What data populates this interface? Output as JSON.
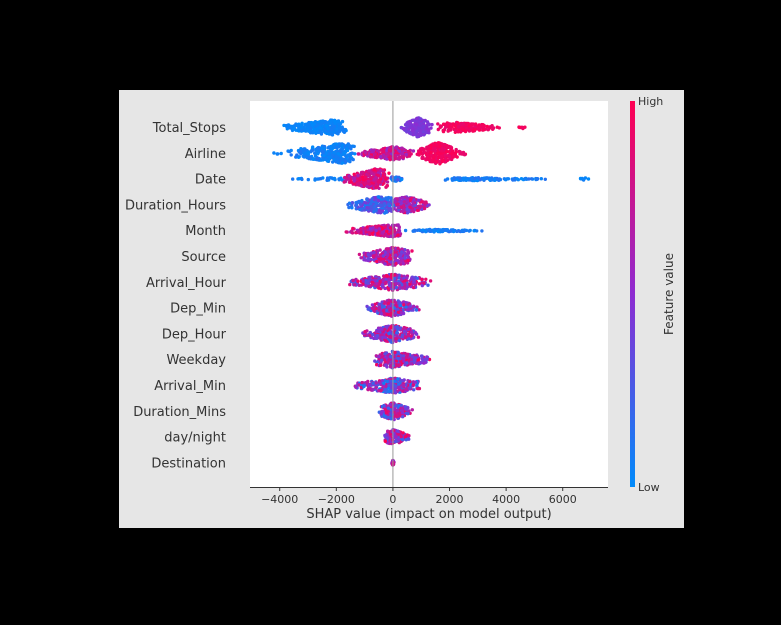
{
  "chart_data": {
    "type": "scatter",
    "subtype": "shap-beeswarm-summary",
    "xlabel": "SHAP value (impact on model output)",
    "ylabel": "",
    "xlim": [
      -5050,
      7600
    ],
    "xticks": [
      -4000,
      -2000,
      0,
      2000,
      4000,
      6000
    ],
    "grid": false,
    "zero_line": true,
    "features": [
      {
        "name": "Total_Stops",
        "groups": [
          {
            "min": -3900,
            "max": -1600,
            "peak": -2200,
            "width": 0.3,
            "count": 300,
            "low": 0.0,
            "high": 0.08
          },
          {
            "min": 250,
            "max": 1400,
            "peak": 900,
            "width": 0.38,
            "count": 180,
            "low": 0.38,
            "high": 0.5
          },
          {
            "min": 1500,
            "max": 3900,
            "peak": 2200,
            "width": 0.2,
            "count": 150,
            "low": 0.88,
            "high": 1.0
          },
          {
            "min": 4400,
            "max": 4700,
            "peak": 4500,
            "width": 0.06,
            "count": 8,
            "low": 0.9,
            "high": 1.0
          }
        ]
      },
      {
        "name": "Airline",
        "groups": [
          {
            "min": -4450,
            "max": -3800,
            "peak": -4100,
            "width": 0.03,
            "count": 4,
            "low": 0.0,
            "high": 0.1
          },
          {
            "min": -3800,
            "max": -1300,
            "peak": -1750,
            "width": 0.4,
            "count": 300,
            "low": 0.0,
            "high": 0.12
          },
          {
            "min": -1300,
            "max": 800,
            "peak": 0,
            "width": 0.26,
            "count": 220,
            "low": 0.5,
            "high": 0.95
          },
          {
            "min": 800,
            "max": 2300,
            "peak": 1600,
            "width": 0.44,
            "count": 260,
            "low": 0.88,
            "high": 1.0
          },
          {
            "min": 2300,
            "max": 2800,
            "peak": 2400,
            "width": 0.08,
            "count": 12,
            "low": 0.85,
            "high": 1.0
          }
        ]
      },
      {
        "name": "Date",
        "groups": [
          {
            "min": -3600,
            "max": -1100,
            "peak": -2000,
            "width": 0.06,
            "count": 30,
            "low": 0.0,
            "high": 0.12
          },
          {
            "min": -1800,
            "max": -100,
            "peak": -550,
            "width": 0.42,
            "count": 250,
            "low": 0.6,
            "high": 1.0
          },
          {
            "min": -100,
            "max": 400,
            "peak": 0,
            "width": 0.12,
            "count": 30,
            "low": 0.0,
            "high": 0.3
          },
          {
            "min": 1800,
            "max": 5500,
            "peak": 2800,
            "width": 0.06,
            "count": 140,
            "low": 0.0,
            "high": 0.15
          },
          {
            "min": 6300,
            "max": 7000,
            "peak": 6800,
            "width": 0.05,
            "count": 8,
            "low": 0.0,
            "high": 0.1
          }
        ]
      },
      {
        "name": "Duration_Hours",
        "groups": [
          {
            "min": -1700,
            "max": 200,
            "peak": -400,
            "width": 0.34,
            "count": 220,
            "low": 0.05,
            "high": 0.45
          },
          {
            "min": 0,
            "max": 1350,
            "peak": 450,
            "width": 0.34,
            "count": 220,
            "low": 0.3,
            "high": 0.95
          }
        ]
      },
      {
        "name": "Month",
        "groups": [
          {
            "min": -1750,
            "max": 350,
            "peak": 0,
            "width": 0.24,
            "count": 220,
            "low": 0.45,
            "high": 1.0
          },
          {
            "min": 350,
            "max": 3200,
            "peak": 1500,
            "width": 0.05,
            "count": 90,
            "low": 0.0,
            "high": 0.15
          }
        ]
      },
      {
        "name": "Source",
        "groups": [
          {
            "min": -1200,
            "max": 700,
            "peak": 50,
            "width": 0.36,
            "count": 260,
            "low": 0.35,
            "high": 0.98
          }
        ]
      },
      {
        "name": "Arrival_Hour",
        "groups": [
          {
            "min": -1650,
            "max": 1400,
            "peak": 0,
            "width": 0.32,
            "count": 280,
            "low": 0.2,
            "high": 0.98
          }
        ]
      },
      {
        "name": "Dep_Min",
        "groups": [
          {
            "min": -950,
            "max": 950,
            "peak": 0,
            "width": 0.34,
            "count": 260,
            "low": 0.1,
            "high": 0.95
          }
        ]
      },
      {
        "name": "Dep_Hour",
        "groups": [
          {
            "min": -1100,
            "max": 950,
            "peak": 0,
            "width": 0.34,
            "count": 260,
            "low": 0.15,
            "high": 0.95
          }
        ]
      },
      {
        "name": "Weekday",
        "groups": [
          {
            "min": -700,
            "max": 1450,
            "peak": 0,
            "width": 0.32,
            "count": 260,
            "low": 0.2,
            "high": 1.0
          }
        ]
      },
      {
        "name": "Arrival_Min",
        "groups": [
          {
            "min": -1400,
            "max": 1050,
            "peak": 0,
            "width": 0.3,
            "count": 260,
            "low": 0.05,
            "high": 0.9
          }
        ]
      },
      {
        "name": "Duration_Mins",
        "groups": [
          {
            "min": -500,
            "max": 700,
            "peak": 0,
            "width": 0.34,
            "count": 200,
            "low": 0.1,
            "high": 0.95
          }
        ]
      },
      {
        "name": "day/night",
        "groups": [
          {
            "min": -350,
            "max": 600,
            "peak": 0,
            "width": 0.3,
            "count": 150,
            "low": 0.2,
            "high": 1.0
          }
        ]
      },
      {
        "name": "Destination",
        "groups": [
          {
            "min": -40,
            "max": 40,
            "peak": 0,
            "width": 0.1,
            "count": 40,
            "low": 0.4,
            "high": 0.9
          }
        ]
      }
    ],
    "colorbar": {
      "label": "Feature value",
      "high_label": "High",
      "low_label": "Low",
      "low_color": "#008bfb",
      "mid_color": "#8e2bd1",
      "high_color": "#ff0052"
    }
  }
}
